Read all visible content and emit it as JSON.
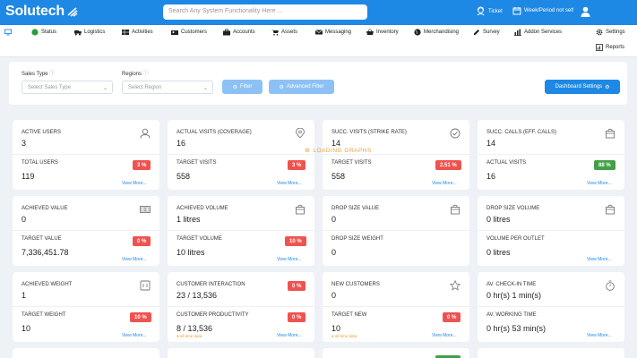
{
  "header": {
    "brand": "Solutech",
    "search_placeholder": "Search Any System Functionality Here ...",
    "ticket_label": "Ticket",
    "week_label": "Week/Period not set!"
  },
  "nav": {
    "status": "Status",
    "logistics": "Logistics",
    "activities": "Activities",
    "customers": "Customers",
    "accounts": "Accounts",
    "assets": "Assets",
    "messaging": "Messaging",
    "inventory": "Inventory",
    "merchandising": "Merchandising",
    "survey": "Survey",
    "addon": "Addon Services",
    "settings": "Settings",
    "reports": "Reports"
  },
  "filter": {
    "sales_type_label": "Sales Type",
    "sales_type_placeholder": "Select Sales Type",
    "regions_label": "Regions",
    "regions_placeholder": "Select Region",
    "filter_btn": "Filter",
    "advanced_btn": "Advanced Filter",
    "dashboard_btn": "Dashboard Settings"
  },
  "loading": "LOADING GRAPHS",
  "view_more": "View More...",
  "all_time": "all time data",
  "colors": {
    "primary": "#1e88e5",
    "danger": "#ef5350",
    "success": "#43a047"
  },
  "cards": {
    "c1": {
      "top_label": "Active Users",
      "top_value": "3",
      "bottom_label": "Total Users",
      "bottom_value": "119",
      "badge": "3 %"
    },
    "c2": {
      "top_label": "Actual Visits (Coverage)",
      "top_value": "16",
      "bottom_label": "Target Visits",
      "bottom_value": "558",
      "badge": "3 %"
    },
    "c3": {
      "top_label": "Succ. Visits (Strike Rate)",
      "top_value": "14",
      "bottom_label": "Target Visits",
      "bottom_value": "558",
      "badge": "2.51 %"
    },
    "c4": {
      "top_label": "Succ. Calls (Eff. Calls)",
      "top_value": "14",
      "bottom_label": "Actual Visits",
      "bottom_value": "16",
      "badge": "88 %"
    },
    "c5": {
      "top_label": "Achieved Value",
      "top_value": "0",
      "bottom_label": "Target Value",
      "bottom_value": "7,336,451.78",
      "badge": "0 %"
    },
    "c6": {
      "top_label": "Achieved Volume",
      "top_value": "1 litres",
      "bottom_label": "Target Volume",
      "bottom_value": "10 litres",
      "badge": "10 %"
    },
    "c7": {
      "top_label": "Drop Size Value",
      "top_value": "0",
      "bottom_label": "Drop Size Weight",
      "bottom_value": "0"
    },
    "c8": {
      "top_label": "Drop Size Volume",
      "top_value": "0 litres",
      "bottom_label": "Volume Per Outlet",
      "bottom_value": "0 litres"
    },
    "c9": {
      "top_label": "Achieved Weight",
      "top_value": "1",
      "bottom_label": "Target Weight",
      "bottom_value": "10",
      "badge": "10 %"
    },
    "c10": {
      "top_label": "Customer Interaction",
      "top_value": "23 / 13,536",
      "bottom_label": "Customer Productivity",
      "bottom_value": "8 / 13,536",
      "badge_top": "0 %",
      "badge": "0 %"
    },
    "c11": {
      "top_label": "New Customers",
      "top_value": "0",
      "bottom_label": "Target New",
      "bottom_value": "10",
      "badge": "0 %"
    },
    "c12": {
      "top_label": "Av. Check-in Time",
      "top_value": "0 hr(s) 1 min(s)",
      "bottom_label": "Av. Working Time",
      "bottom_value": "0 hr(s) 53 min(s)"
    }
  }
}
